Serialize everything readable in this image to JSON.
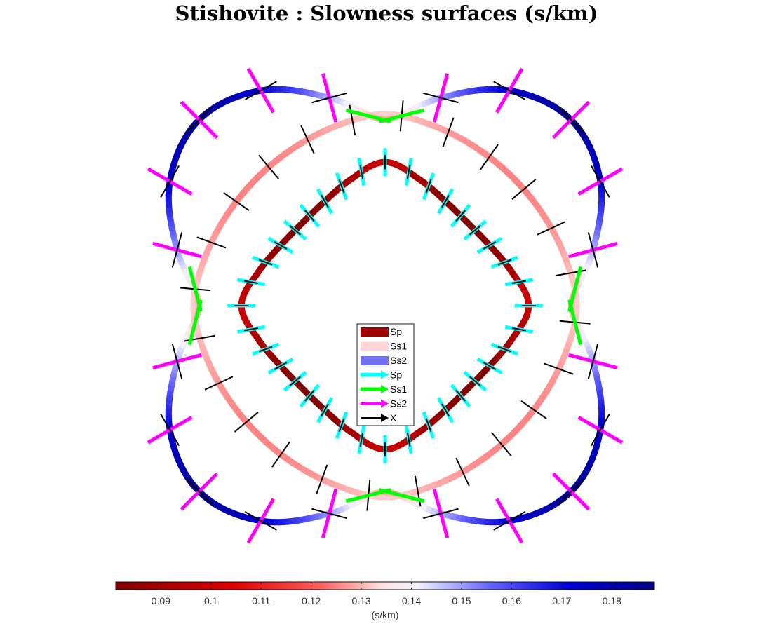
{
  "chart_data": {
    "type": "line",
    "title": "Stishovite : Slowness surfaces (s/km)",
    "projection": "polar",
    "description_series_values": "radius in s/km vs azimuth in degrees (0 = up, clockwise)",
    "series": [
      {
        "name": "Sp",
        "kind": "slowness surface",
        "color_scale": "by value",
        "values": [
          {
            "az": 0,
            "s": 0.0994
          },
          {
            "az": 15,
            "s": 0.0907
          },
          {
            "az": 30,
            "s": 0.0835
          },
          {
            "az": 45,
            "s": 0.081
          },
          {
            "az": 60,
            "s": 0.0835
          },
          {
            "az": 75,
            "s": 0.0907
          },
          {
            "az": 90,
            "s": 0.0994
          },
          {
            "az": 105,
            "s": 0.0907
          },
          {
            "az": 120,
            "s": 0.0835
          },
          {
            "az": 135,
            "s": 0.081
          },
          {
            "az": 150,
            "s": 0.0835
          },
          {
            "az": 165,
            "s": 0.0907
          },
          {
            "az": 180,
            "s": 0.0994
          },
          {
            "az": 195,
            "s": 0.0907
          },
          {
            "az": 210,
            "s": 0.0835
          },
          {
            "az": 225,
            "s": 0.081
          },
          {
            "az": 240,
            "s": 0.0835
          },
          {
            "az": 255,
            "s": 0.0907
          },
          {
            "az": 270,
            "s": 0.0994
          },
          {
            "az": 285,
            "s": 0.0907
          },
          {
            "az": 300,
            "s": 0.0835
          },
          {
            "az": 315,
            "s": 0.081
          },
          {
            "az": 330,
            "s": 0.0835
          },
          {
            "az": 345,
            "s": 0.0907
          }
        ]
      },
      {
        "name": "Ss1",
        "kind": "slowness surface",
        "color_scale": "by value",
        "values": [
          {
            "az": 0,
            "s": 0.1326
          },
          {
            "az": 15,
            "s": 0.129
          },
          {
            "az": 30,
            "s": 0.1262
          },
          {
            "az": 45,
            "s": 0.1252
          },
          {
            "az": 60,
            "s": 0.1262
          },
          {
            "az": 75,
            "s": 0.129
          },
          {
            "az": 90,
            "s": 0.1326
          },
          {
            "az": 105,
            "s": 0.129
          },
          {
            "az": 120,
            "s": 0.1262
          },
          {
            "az": 135,
            "s": 0.1252
          },
          {
            "az": 150,
            "s": 0.1262
          },
          {
            "az": 165,
            "s": 0.129
          },
          {
            "az": 180,
            "s": 0.1326
          },
          {
            "az": 195,
            "s": 0.129
          },
          {
            "az": 210,
            "s": 0.1262
          },
          {
            "az": 225,
            "s": 0.1252
          },
          {
            "az": 240,
            "s": 0.1262
          },
          {
            "az": 255,
            "s": 0.129
          },
          {
            "az": 270,
            "s": 0.1326
          },
          {
            "az": 285,
            "s": 0.129
          },
          {
            "az": 300,
            "s": 0.1262
          },
          {
            "az": 315,
            "s": 0.1252
          },
          {
            "az": 330,
            "s": 0.1262
          },
          {
            "az": 345,
            "s": 0.129
          }
        ]
      },
      {
        "name": "Ss2",
        "kind": "slowness surface",
        "color_scale": "by value",
        "values": [
          {
            "az": 0,
            "s": 0.1289
          },
          {
            "az": 15,
            "s": 0.149
          },
          {
            "az": 30,
            "s": 0.172
          },
          {
            "az": 45,
            "s": 0.182
          },
          {
            "az": 60,
            "s": 0.172
          },
          {
            "az": 75,
            "s": 0.149
          },
          {
            "az": 90,
            "s": 0.1289
          },
          {
            "az": 105,
            "s": 0.149
          },
          {
            "az": 120,
            "s": 0.172
          },
          {
            "az": 135,
            "s": 0.182
          },
          {
            "az": 150,
            "s": 0.172
          },
          {
            "az": 165,
            "s": 0.149
          },
          {
            "az": 180,
            "s": 0.1289
          },
          {
            "az": 195,
            "s": 0.149
          },
          {
            "az": 210,
            "s": 0.172
          },
          {
            "az": 225,
            "s": 0.182
          },
          {
            "az": 240,
            "s": 0.172
          },
          {
            "az": 255,
            "s": 0.149
          },
          {
            "az": 270,
            "s": 0.1289
          },
          {
            "az": 285,
            "s": 0.149
          },
          {
            "az": 300,
            "s": 0.172
          },
          {
            "az": 315,
            "s": 0.182
          },
          {
            "az": 330,
            "s": 0.172
          },
          {
            "az": 345,
            "s": 0.149
          }
        ]
      }
    ],
    "colorbar": {
      "min": 0.081,
      "max": 0.1885,
      "ticks": [
        0.09,
        0.1,
        0.11,
        0.12,
        0.13,
        0.14,
        0.15,
        0.16,
        0.17,
        0.18
      ],
      "tick_labels": [
        "0.09",
        "0.1",
        "0.11",
        "0.12",
        "0.13",
        "0.14",
        "0.15",
        "0.16",
        "0.17",
        "0.18"
      ],
      "label": "(s/km)",
      "orientation": "horizontal",
      "colormap": "red-white-blue (diverging)"
    },
    "legend": {
      "placement": "center",
      "entries": [
        {
          "label": "Sp",
          "type": "patch",
          "color": "#a00000"
        },
        {
          "label": "Ss1",
          "type": "patch",
          "color": "#ffd4d4"
        },
        {
          "label": "Ss2",
          "type": "patch",
          "color": "#7070f0"
        },
        {
          "label": "Sp",
          "type": "arrow",
          "color": "#00ffff"
        },
        {
          "label": "Ss1",
          "type": "arrow",
          "color": "#00ff00"
        },
        {
          "label": "Ss2",
          "type": "arrow",
          "color": "#ff00ff"
        },
        {
          "label": "X",
          "type": "arrow",
          "color": "#000000"
        }
      ]
    },
    "polarization_markers": {
      "Sp": {
        "color": "#00ffff",
        "orientation": "radial"
      },
      "Ss1": {
        "color": "#00ff00",
        "orientation": "tangential"
      },
      "Ss2": {
        "color": "#ff00ff",
        "orientation": "radial"
      },
      "X": {
        "color": "#000000",
        "orientation": "radial"
      }
    }
  }
}
